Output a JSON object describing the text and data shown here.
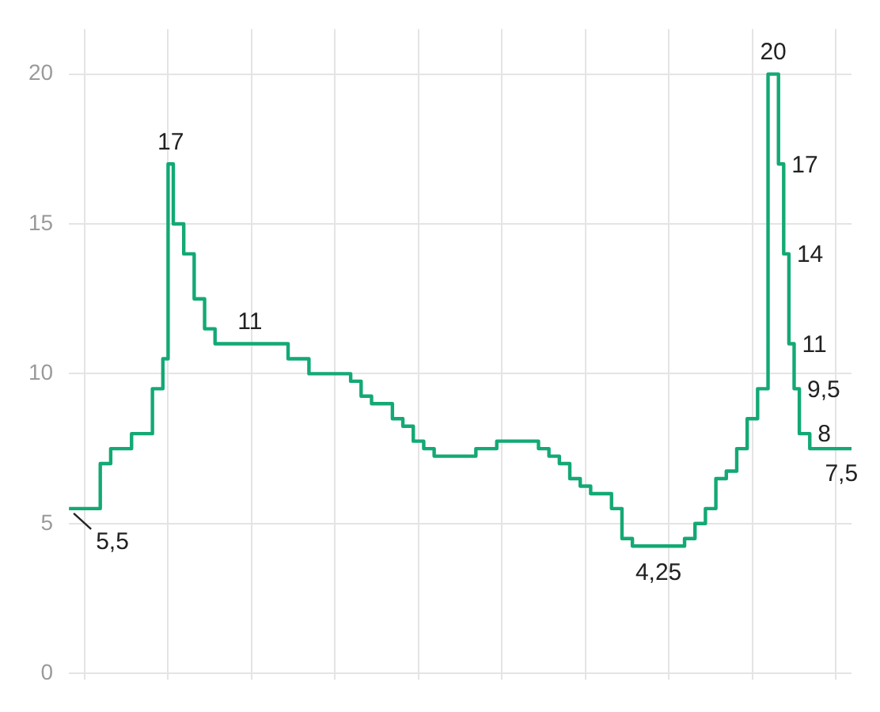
{
  "chart_data": {
    "type": "step",
    "categories": [
      null,
      null,
      null,
      null,
      null,
      null,
      null,
      null,
      null,
      null,
      null,
      null,
      null,
      null,
      null,
      null,
      null,
      null,
      null,
      null,
      null,
      null,
      null,
      null,
      null,
      null,
      null,
      null,
      null,
      null,
      null,
      null,
      null,
      null,
      null,
      null,
      null,
      null,
      null,
      null,
      null,
      null,
      null,
      null,
      null,
      null,
      null,
      null,
      null,
      null,
      null,
      null,
      null,
      null,
      null,
      null,
      null,
      null,
      null,
      null,
      null,
      null,
      null,
      null,
      null,
      null,
      null,
      null,
      null,
      null,
      null,
      null,
      null,
      null,
      null,
      null,
      null,
      null,
      null,
      null,
      null,
      null,
      null,
      null,
      null,
      null,
      null,
      null,
      null,
      null,
      null,
      null,
      null,
      null,
      null,
      null,
      null,
      null,
      null,
      null,
      null,
      null,
      null,
      null,
      null,
      null,
      null,
      null,
      null,
      null,
      null,
      null,
      null,
      null,
      null,
      null,
      null,
      null,
      null,
      null,
      null,
      null,
      null,
      null,
      null,
      null,
      null,
      null,
      null,
      null,
      null,
      null,
      null,
      null,
      null,
      null,
      null,
      null,
      null,
      null,
      null,
      null,
      null,
      null,
      null,
      null,
      null,
      null,
      null,
      null,
      null
    ],
    "series": [
      {
        "color": "#13a974",
        "values": [
          5.5,
          5.5,
          5.5,
          5.5,
          5.5,
          5.5,
          7,
          7,
          7.5,
          7.5,
          7.5,
          7.5,
          8,
          8,
          8,
          8,
          9.5,
          9.5,
          10.5,
          17,
          15,
          15,
          14,
          14,
          12.5,
          12.5,
          11.5,
          11.5,
          11,
          11,
          11,
          11,
          11,
          11,
          11,
          11,
          11,
          11,
          11,
          11,
          11,
          11,
          10.5,
          10.5,
          10.5,
          10.5,
          10,
          10,
          10,
          10,
          10,
          10,
          10,
          10,
          9.75,
          9.75,
          9.25,
          9.25,
          9,
          9,
          9,
          9,
          8.5,
          8.5,
          8.25,
          8.25,
          7.75,
          7.75,
          7.5,
          7.5,
          7.25,
          7.25,
          7.25,
          7.25,
          7.25,
          7.25,
          7.25,
          7.25,
          7.5,
          7.5,
          7.5,
          7.5,
          7.75,
          7.75,
          7.75,
          7.75,
          7.75,
          7.75,
          7.75,
          7.75,
          7.5,
          7.5,
          7.25,
          7.25,
          7,
          7,
          6.5,
          6.5,
          6.25,
          6.25,
          6,
          6,
          6,
          6,
          5.5,
          5.5,
          4.5,
          4.5,
          4.25,
          4.25,
          4.25,
          4.25,
          4.25,
          4.25,
          4.25,
          4.25,
          4.25,
          4.25,
          4.5,
          4.5,
          5,
          5,
          5.5,
          5.5,
          6.5,
          6.5,
          6.75,
          6.75,
          7.5,
          7.5,
          8.5,
          8.5,
          9.5,
          9.5,
          20,
          20,
          17,
          14,
          11,
          9.5,
          8,
          8,
          7.5,
          7.5,
          7.5,
          7.5,
          7.5,
          7.5,
          7.5,
          7.5,
          7.5
        ],
        "value_labels": [
          "5,5",
          null,
          null,
          null,
          null,
          null,
          null,
          null,
          null,
          null,
          null,
          null,
          null,
          null,
          null,
          null,
          null,
          null,
          null,
          "17",
          null,
          null,
          null,
          null,
          null,
          null,
          null,
          null,
          "11",
          null,
          null,
          null,
          null,
          null,
          null,
          null,
          null,
          null,
          null,
          null,
          null,
          null,
          null,
          null,
          null,
          null,
          null,
          null,
          null,
          null,
          null,
          null,
          null,
          null,
          null,
          null,
          null,
          null,
          null,
          null,
          null,
          null,
          null,
          null,
          null,
          null,
          null,
          null,
          null,
          null,
          null,
          null,
          null,
          null,
          null,
          null,
          null,
          null,
          null,
          null,
          null,
          null,
          null,
          null,
          null,
          null,
          null,
          null,
          null,
          null,
          null,
          null,
          null,
          null,
          null,
          null,
          null,
          null,
          null,
          null,
          null,
          null,
          null,
          null,
          null,
          null,
          null,
          null,
          "4,25",
          null,
          null,
          null,
          null,
          null,
          null,
          null,
          null,
          null,
          null,
          null,
          null,
          null,
          null,
          null,
          null,
          null,
          null,
          null,
          null,
          null,
          null,
          null,
          null,
          null,
          "20",
          null,
          "17",
          "14",
          "11",
          "9,5",
          "8",
          null,
          "7,5",
          null,
          null,
          null,
          null,
          null,
          null,
          null,
          null
        ]
      }
    ],
    "ylim": [
      0,
      21.5
    ],
    "yticks": [
      0,
      5,
      10,
      15,
      20
    ],
    "grid": true,
    "legend": false,
    "marker": "none",
    "line_style": "solid"
  }
}
